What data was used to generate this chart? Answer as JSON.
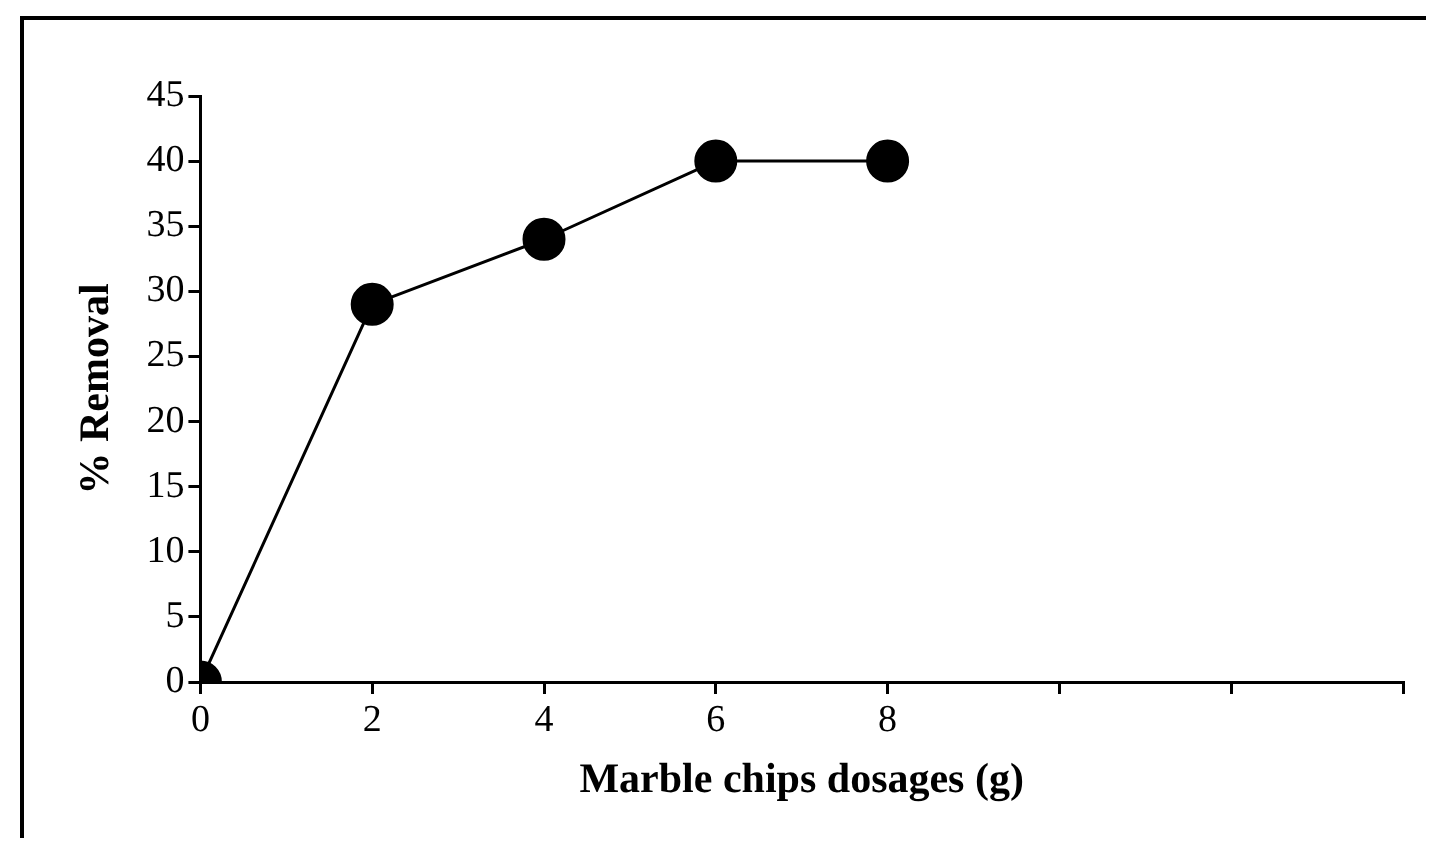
{
  "chart_data": {
    "type": "line",
    "xlabel": "Marble chips dosages (g)",
    "ylabel": "% Removal",
    "x": [
      0,
      2,
      4,
      6,
      8
    ],
    "series": [
      {
        "color": "#000000",
        "values": [
          0,
          29,
          34,
          40,
          40
        ]
      }
    ],
    "xlim": [
      0,
      14
    ],
    "xticks": [
      0,
      2,
      4,
      6,
      8,
      {
        "value": 10,
        "label": null
      },
      {
        "value": 12,
        "label": null
      },
      {
        "value": 14,
        "label": null
      }
    ],
    "ylim": [
      0,
      45
    ],
    "yticks": [
      0,
      5,
      10,
      15,
      20,
      25,
      30,
      35,
      40,
      45
    ],
    "grid": false,
    "legend": false,
    "marker": "circle",
    "line_style": "solid"
  }
}
